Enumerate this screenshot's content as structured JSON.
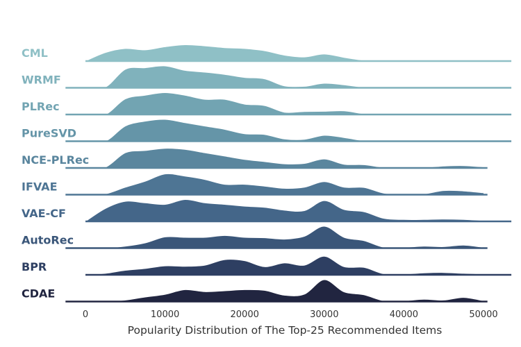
{
  "chart_data": {
    "type": "area",
    "subtype": "ridgeline",
    "title": "",
    "xlabel": "Popularity Distribution of The Top-25 Recommended Items",
    "ylabel": "",
    "xlim": [
      -2500,
      53500
    ],
    "xticks": [
      0,
      10000,
      20000,
      30000,
      40000,
      50000
    ],
    "grid": false,
    "legend": "none",
    "x": [
      0,
      2500,
      5000,
      7500,
      10000,
      12500,
      15000,
      17500,
      20000,
      22500,
      25000,
      27500,
      30000,
      32500,
      35000,
      37500,
      40000,
      42500,
      45000,
      47500,
      50000
    ],
    "series": [
      {
        "name": "CML",
        "color": "#8fc0c6",
        "x_range": [
          0,
          53500
        ],
        "values": [
          0.02,
          0.4,
          0.58,
          0.52,
          0.66,
          0.75,
          0.7,
          0.62,
          0.58,
          0.48,
          0.28,
          0.2,
          0.33,
          0.18,
          0.05,
          0.03,
          0.02,
          0.02,
          0.01,
          0.01,
          0.01
        ]
      },
      {
        "name": "WRMF",
        "color": "#80b2bc",
        "x_range": [
          -2500,
          53500
        ],
        "values": [
          0.0,
          0.05,
          0.85,
          0.92,
          1.0,
          0.8,
          0.72,
          0.62,
          0.48,
          0.42,
          0.1,
          0.08,
          0.22,
          0.15,
          0.04,
          0.03,
          0.02,
          0.02,
          0.01,
          0.01,
          0.01
        ]
      },
      {
        "name": "PLRec",
        "color": "#72a4b2",
        "x_range": [
          -2500,
          53500
        ],
        "values": [
          0.0,
          0.02,
          0.72,
          0.88,
          1.0,
          0.88,
          0.7,
          0.7,
          0.48,
          0.42,
          0.12,
          0.15,
          0.16,
          0.18,
          0.05,
          0.03,
          0.02,
          0.02,
          0.01,
          0.01,
          0.01
        ]
      },
      {
        "name": "PureSVD",
        "color": "#6595a8",
        "x_range": [
          -2500,
          53500
        ],
        "values": [
          0.0,
          0.02,
          0.7,
          0.92,
          1.0,
          0.85,
          0.7,
          0.55,
          0.35,
          0.32,
          0.12,
          0.1,
          0.28,
          0.18,
          0.04,
          0.03,
          0.02,
          0.02,
          0.01,
          0.01,
          0.01
        ]
      },
      {
        "name": "NCE-PLRec",
        "color": "#5a869e",
        "x_range": [
          -2500,
          50500
        ],
        "values": [
          0.0,
          0.05,
          0.7,
          0.8,
          0.9,
          0.85,
          0.7,
          0.55,
          0.4,
          0.3,
          0.2,
          0.22,
          0.42,
          0.18,
          0.16,
          0.04,
          0.04,
          0.04,
          0.1,
          0.12,
          0.06
        ]
      },
      {
        "name": "IFVAE",
        "color": "#4e7594",
        "x_range": [
          -2500,
          50500
        ],
        "values": [
          0.0,
          0.05,
          0.35,
          0.62,
          0.95,
          0.85,
          0.7,
          0.48,
          0.48,
          0.4,
          0.3,
          0.35,
          0.6,
          0.35,
          0.34,
          0.08,
          0.05,
          0.05,
          0.2,
          0.18,
          0.1
        ]
      },
      {
        "name": "VAE-CF",
        "color": "#446689",
        "x_range": [
          0,
          53500
        ],
        "values": [
          0.02,
          0.6,
          0.92,
          0.85,
          0.78,
          1.0,
          0.85,
          0.78,
          0.7,
          0.65,
          0.52,
          0.5,
          0.95,
          0.55,
          0.45,
          0.15,
          0.1,
          0.1,
          0.12,
          0.1,
          0.05
        ]
      },
      {
        "name": "AutoRec",
        "color": "#3a5679",
        "x_range": [
          -2500,
          50500
        ],
        "values": [
          0.0,
          0.02,
          0.1,
          0.25,
          0.52,
          0.5,
          0.5,
          0.58,
          0.5,
          0.48,
          0.42,
          0.55,
          1.0,
          0.5,
          0.35,
          0.05,
          0.05,
          0.1,
          0.08,
          0.15,
          0.05
        ]
      },
      {
        "name": "BPR",
        "color": "#2e3f62",
        "x_range": [
          0,
          53500
        ],
        "values": [
          0.02,
          0.08,
          0.22,
          0.3,
          0.42,
          0.4,
          0.45,
          0.7,
          0.65,
          0.38,
          0.55,
          0.45,
          0.85,
          0.38,
          0.35,
          0.06,
          0.05,
          0.1,
          0.12,
          0.08,
          0.05
        ]
      },
      {
        "name": "CDAE",
        "color": "#212540",
        "x_range": [
          -2500,
          50500
        ],
        "values": [
          0.0,
          0.02,
          0.08,
          0.22,
          0.34,
          0.55,
          0.46,
          0.5,
          0.55,
          0.52,
          0.3,
          0.35,
          1.0,
          0.45,
          0.32,
          0.05,
          0.05,
          0.12,
          0.08,
          0.2,
          0.05
        ]
      }
    ]
  }
}
